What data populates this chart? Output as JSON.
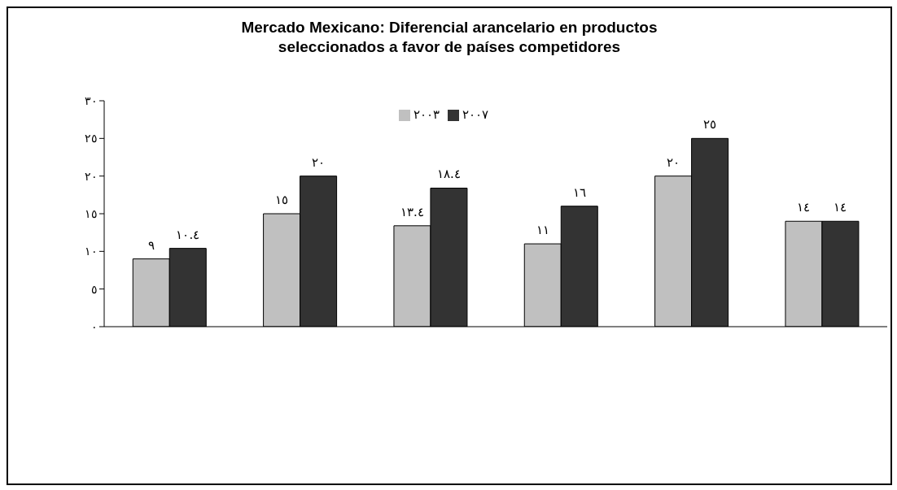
{
  "chart_data": {
    "type": "bar",
    "title": "Mercado Mexicano: Diferencial arancelario en productos seleccionados a favor de países competidores",
    "categories": [
      null,
      null,
      null,
      null,
      null,
      null
    ],
    "series": [
      {
        "name": "٢٠٠٣",
        "color": "#c0c0c0",
        "values": [
          9,
          15,
          13.4,
          11,
          20,
          14
        ],
        "value_labels": [
          "٩",
          "١٥",
          "١٣.٤",
          "١١",
          "٢٠",
          "١٤"
        ]
      },
      {
        "name": "٢٠٠٧",
        "color": "#333333",
        "values": [
          10.4,
          20,
          18.4,
          16,
          25,
          14
        ],
        "value_labels": [
          "١٠.٤",
          "٢٠",
          "١٨.٤",
          "١٦",
          "٢٥",
          "١٤"
        ]
      }
    ],
    "ylim": [
      0,
      30
    ],
    "yticks": [
      {
        "value": 0,
        "label": "٠"
      },
      {
        "value": 5,
        "label": "٥"
      },
      {
        "value": 10,
        "label": "١٠"
      },
      {
        "value": 15,
        "label": "١٥"
      },
      {
        "value": 20,
        "label": "٢٠"
      },
      {
        "value": 25,
        "label": "٢٥"
      },
      {
        "value": 30,
        "label": "٣٠"
      }
    ],
    "grid": false,
    "legend": "top"
  }
}
